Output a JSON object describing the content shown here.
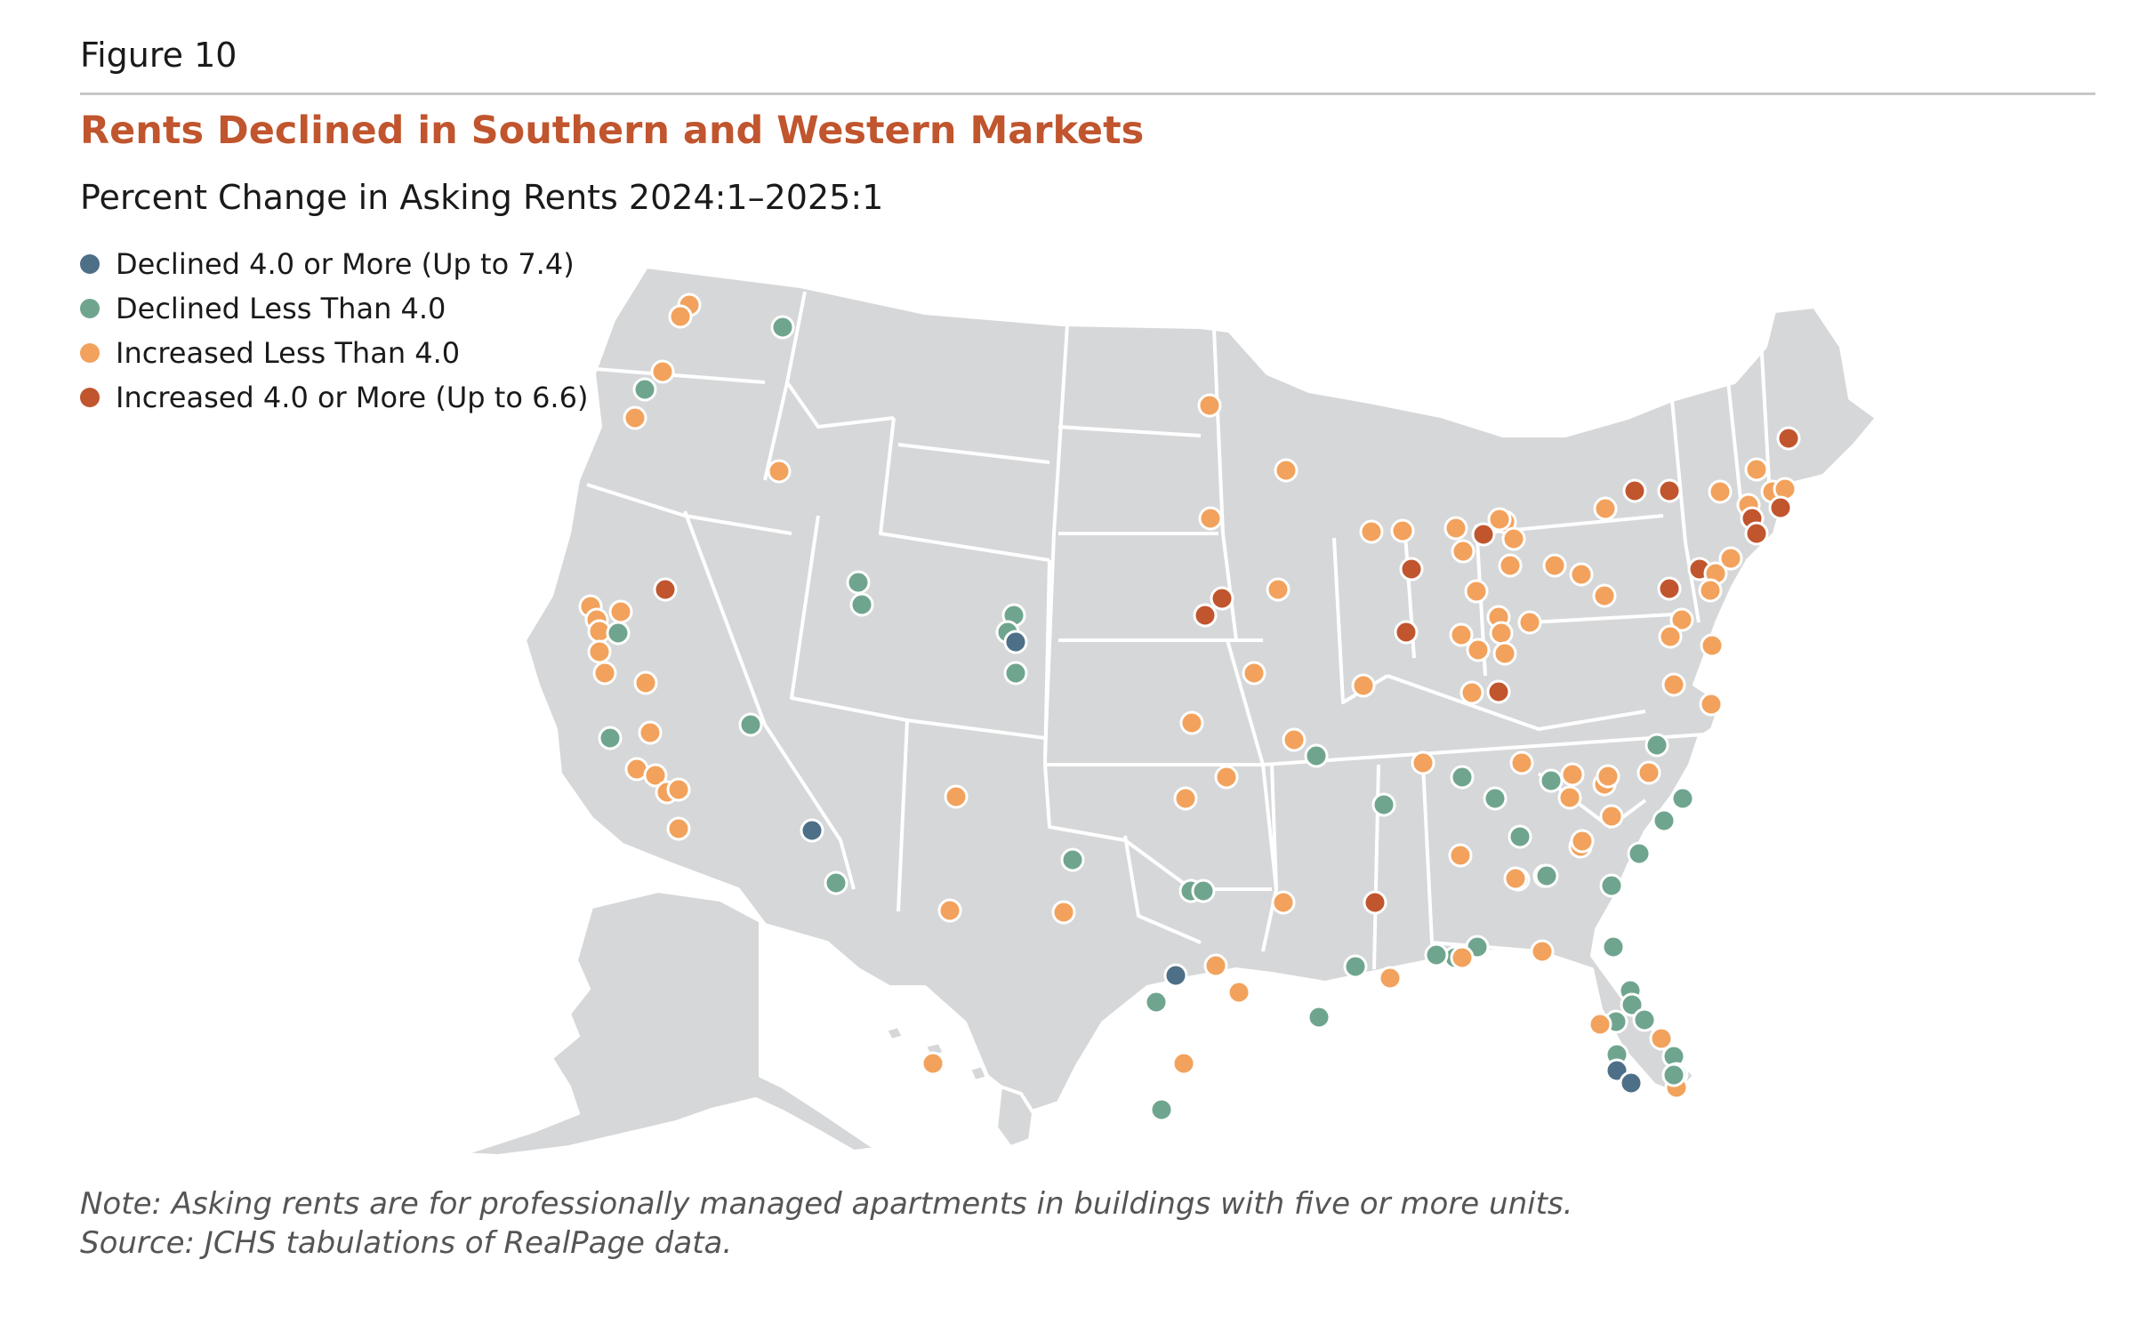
{
  "figure_label": "Figure 10",
  "title": "Rents Declined in Southern and Western Markets",
  "subtitle": "Percent Change in Asking Rents 2024:1–2025:1",
  "legend": [
    {
      "label": "Declined 4.0 or More (Up to 7.4)",
      "color": "#4d6f87",
      "category": "declined_4_plus"
    },
    {
      "label": "Declined Less Than 4.0",
      "color": "#6fa58e",
      "category": "declined_under_4"
    },
    {
      "label": "Increased Less Than 4.0",
      "color": "#f2a25c",
      "category": "increased_under_4"
    },
    {
      "label": "Increased 4.0 or More (Up to 6.6)",
      "color": "#c0552e",
      "category": "increased_4_plus"
    }
  ],
  "notes": {
    "note": "Note: Asking rents are for professionally managed apartments in buildings with five or more units.",
    "source": "Source: JCHS tabulations of RealPage data."
  },
  "map_style": {
    "land_color": "#d6d7d9",
    "border_color": "#ffffff",
    "marker_outline": "#ffffff"
  }
}
